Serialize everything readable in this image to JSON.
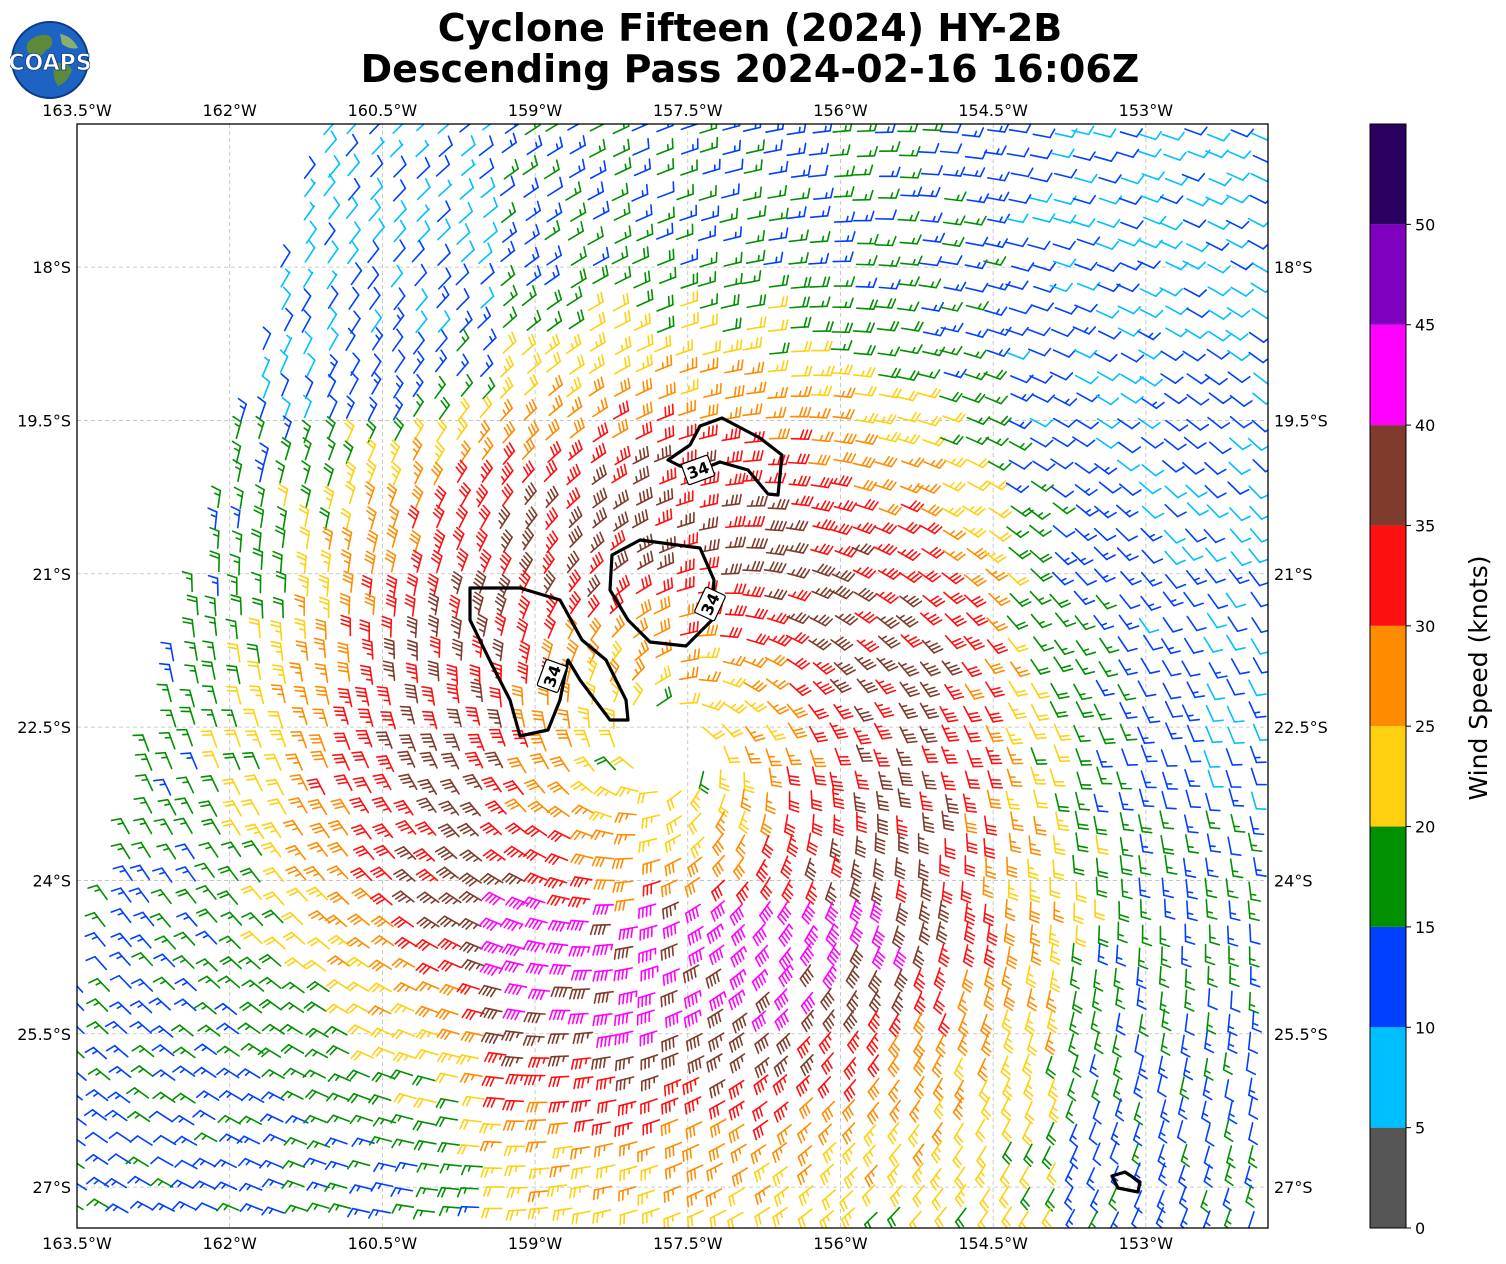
{
  "header": {
    "title_line1": "Cyclone Fifteen (2024) HY-2B",
    "title_line2": "Descending Pass 2024-02-16 16:06Z",
    "logo_text": "COAPS"
  },
  "map": {
    "lon_range": [
      -163.5,
      -151.8
    ],
    "lat_range": [
      -16.6,
      -27.4
    ],
    "lon_ticks": [
      -163.5,
      -162,
      -160.5,
      -159,
      -157.5,
      -156,
      -154.5,
      -153
    ],
    "lon_tick_labels": [
      "163.5°W",
      "162°W",
      "160.5°W",
      "159°W",
      "157.5°W",
      "156°W",
      "154.5°W",
      "153°W"
    ],
    "lat_ticks": [
      -18,
      -19.5,
      -21,
      -22.5,
      -24,
      -25.5,
      -27
    ],
    "lat_tick_labels": [
      "18°S",
      "19.5°S",
      "21°S",
      "22.5°S",
      "24°S",
      "25.5°S",
      "27°S"
    ],
    "grid": true,
    "center": {
      "lon": -157.7,
      "lat": -22.7
    },
    "contour_level_label": "34"
  },
  "colorbar": {
    "label": "Wind Speed (knots)",
    "tick_labels": [
      "0",
      "5",
      "10",
      "15",
      "20",
      "25",
      "30",
      "35",
      "40",
      "45",
      "50"
    ],
    "bins": [
      {
        "from": 0,
        "to": 5,
        "color": "#555555"
      },
      {
        "from": 5,
        "to": 10,
        "color": "#00bfff"
      },
      {
        "from": 10,
        "to": 15,
        "color": "#0040ff"
      },
      {
        "from": 15,
        "to": 20,
        "color": "#009000"
      },
      {
        "from": 20,
        "to": 25,
        "color": "#ffd010"
      },
      {
        "from": 25,
        "to": 30,
        "color": "#ff8c00"
      },
      {
        "from": 30,
        "to": 35,
        "color": "#ff1010"
      },
      {
        "from": 35,
        "to": 40,
        "color": "#7f3b2b"
      },
      {
        "from": 40,
        "to": 45,
        "color": "#ff00ff"
      },
      {
        "from": 45,
        "to": 50,
        "color": "#8000c0"
      },
      {
        "from": 50,
        "to": 55,
        "color": "#2a0060"
      }
    ]
  }
}
